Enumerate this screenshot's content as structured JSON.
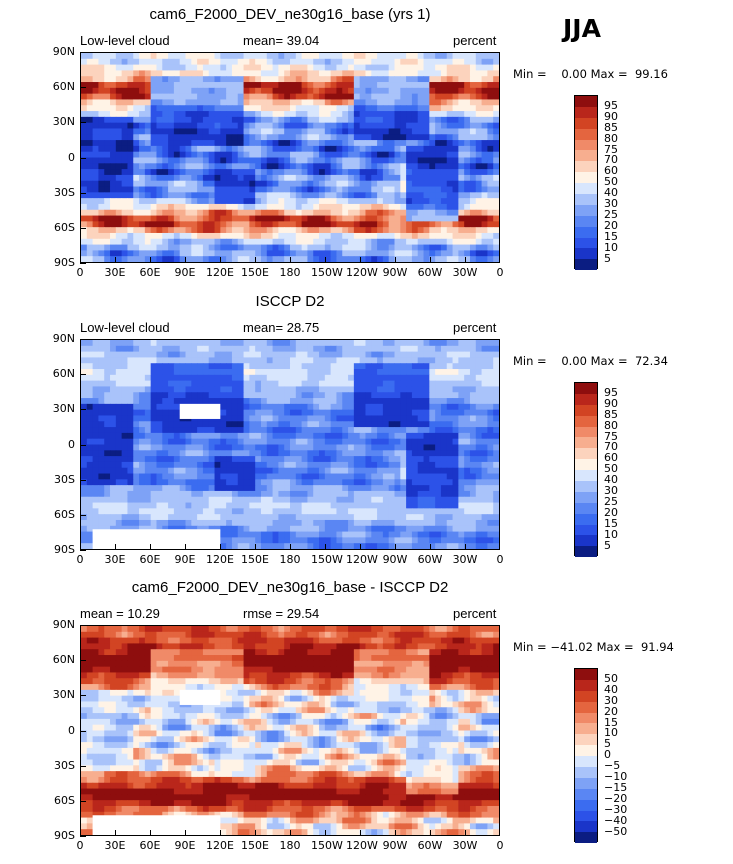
{
  "season": "JJA",
  "panels": [
    {
      "title": "cam6_F2000_DEV_ne30g16_base (yrs 1)",
      "left_label": "Low-level cloud",
      "center_label": "mean=  39.04",
      "right_label": "percent",
      "minmax": "Min =    0.00 Max =  99.16",
      "colorbar_levels": [
        "95",
        "90",
        "85",
        "80",
        "75",
        "70",
        "60",
        "50",
        "40",
        "30",
        "25",
        "20",
        "15",
        "10",
        "5"
      ],
      "field": "model"
    },
    {
      "title": "ISCCP D2",
      "left_label": "Low-level cloud",
      "center_label": "mean=  28.75",
      "right_label": "percent",
      "minmax": "Min =    0.00 Max =  72.34",
      "colorbar_levels": [
        "95",
        "90",
        "85",
        "80",
        "75",
        "70",
        "60",
        "50",
        "40",
        "30",
        "25",
        "20",
        "15",
        "10",
        "5"
      ],
      "field": "obs"
    },
    {
      "title": "cam6_F2000_DEV_ne30g16_base - ISCCP D2",
      "left_label": "mean =  10.29",
      "center_label": "rmse =  29.54",
      "right_label": "percent",
      "minmax": "Min = −41.02 Max =  91.94",
      "colorbar_levels": [
        "50",
        "40",
        "30",
        "20",
        "15",
        "10",
        "5",
        "0",
        "−5",
        "−10",
        "−15",
        "−20",
        "−30",
        "−40",
        "−50"
      ],
      "field": "diff"
    }
  ],
  "lat_ticks": [
    "90N",
    "60N",
    "30N",
    "0",
    "30S",
    "60S",
    "90S"
  ],
  "lon_ticks": [
    "0",
    "30E",
    "60E",
    "90E",
    "120E",
    "150E",
    "180",
    "150W",
    "120W",
    "90W",
    "60W",
    "30W",
    "0"
  ],
  "chart_data": [
    {
      "type": "heatmap",
      "title": "cam6_F2000_DEV_ne30g16_base (yrs 1)",
      "variable": "Low-level cloud",
      "units": "percent",
      "mean": 39.04,
      "min": 0.0,
      "max": 99.16,
      "levels": [
        5,
        10,
        15,
        20,
        25,
        30,
        40,
        50,
        60,
        70,
        75,
        80,
        85,
        90,
        95
      ],
      "x_range": [
        0,
        360
      ],
      "y_range": [
        -90,
        90
      ]
    },
    {
      "type": "heatmap",
      "title": "ISCCP D2",
      "variable": "Low-level cloud",
      "units": "percent",
      "mean": 28.75,
      "min": 0.0,
      "max": 72.34,
      "levels": [
        5,
        10,
        15,
        20,
        25,
        30,
        40,
        50,
        60,
        70,
        75,
        80,
        85,
        90,
        95
      ],
      "x_range": [
        0,
        360
      ],
      "y_range": [
        -90,
        90
      ]
    },
    {
      "type": "heatmap",
      "title": "cam6_F2000_DEV_ne30g16_base - ISCCP D2",
      "units": "percent",
      "mean": 10.29,
      "rmse": 29.54,
      "min": -41.02,
      "max": 91.94,
      "levels": [
        -50,
        -40,
        -30,
        -20,
        -15,
        -10,
        -5,
        0,
        5,
        10,
        15,
        20,
        30,
        40,
        50
      ],
      "x_range": [
        0,
        360
      ],
      "y_range": [
        -90,
        90
      ]
    }
  ],
  "colors": {
    "abs_scale": [
      "#0b1d82",
      "#1a35c9",
      "#2c52e8",
      "#3b6cf0",
      "#5a86f3",
      "#7ea2f6",
      "#a9c3fa",
      "#d8e6fd",
      "#fff3e6",
      "#fcd3bd",
      "#f7ae8f",
      "#f08a68",
      "#e4653f",
      "#d24423",
      "#b9261b",
      "#8e0e0e"
    ],
    "diff_scale": [
      "#0b1d82",
      "#1a35c9",
      "#2c52e8",
      "#3b6cf0",
      "#5a86f3",
      "#7ea2f6",
      "#a9c3fa",
      "#d8e6fd",
      "#fff3e6",
      "#fcd3bd",
      "#f7ae8f",
      "#f08a68",
      "#e4653f",
      "#d24423",
      "#b9261b",
      "#8e0e0e"
    ]
  }
}
